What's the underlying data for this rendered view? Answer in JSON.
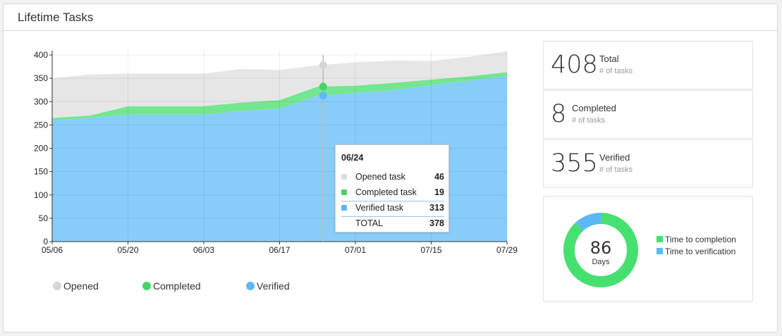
{
  "panel": {
    "title": "Lifetime Tasks"
  },
  "colors": {
    "opened": "#e6e6e6",
    "completed": "#73e68f",
    "verified": "#87cdfa",
    "completed_dot": "#46d468",
    "verified_dot": "#5fb8f4",
    "opened_dot": "#d5d5d5",
    "donut_completion": "#46e070",
    "donut_verification": "#5bb8f5"
  },
  "chart_data": {
    "type": "area",
    "stacked": true,
    "x": [
      "05/06",
      "05/13",
      "05/20",
      "05/27",
      "06/03",
      "06/10",
      "06/17",
      "06/24",
      "07/01",
      "07/08",
      "07/15",
      "07/22",
      "07/29"
    ],
    "xticks": [
      "05/06",
      "05/20",
      "06/03",
      "06/17",
      "07/01",
      "07/15",
      "07/29"
    ],
    "ylim": [
      0,
      400
    ],
    "yticks": [
      0,
      50,
      100,
      150,
      200,
      250,
      300,
      350,
      400
    ],
    "grid": true,
    "series": [
      {
        "name": "Verified",
        "key": "verified",
        "values": [
          260,
          265,
          272,
          272,
          272,
          280,
          285,
          313,
          318,
          325,
          335,
          345,
          355
        ]
      },
      {
        "name": "Completed",
        "key": "completed",
        "values": [
          5,
          5,
          18,
          18,
          18,
          18,
          18,
          19,
          16,
          15,
          12,
          9,
          8
        ]
      },
      {
        "name": "Opened",
        "key": "opened",
        "values": [
          85,
          88,
          70,
          70,
          70,
          72,
          65,
          46,
          50,
          48,
          40,
          42,
          45
        ]
      }
    ],
    "hover_index": 7,
    "legend_position": "bottom-left"
  },
  "legend": {
    "opened": "Opened",
    "completed": "Completed",
    "verified": "Verified"
  },
  "tooltip": {
    "date": "06/24",
    "opened_label": "Opened task",
    "opened_value": "46",
    "completed_label": "Completed task",
    "completed_value": "19",
    "verified_label": "Verified task",
    "verified_value": "313",
    "total_label": "TOTAL",
    "total_value": "378"
  },
  "stats": {
    "total": {
      "value": "408",
      "title": "Total",
      "sub": "# of tasks"
    },
    "completed": {
      "value": "8",
      "title": "Completed",
      "sub": "# of tasks"
    },
    "verified": {
      "value": "355",
      "title": "Verified",
      "sub": "# of tasks"
    }
  },
  "donut": {
    "value": "86",
    "unit": "Days",
    "slices": [
      {
        "name": "Time to completion",
        "fraction": 0.88
      },
      {
        "name": "Time to verification",
        "fraction": 0.12
      }
    ]
  }
}
